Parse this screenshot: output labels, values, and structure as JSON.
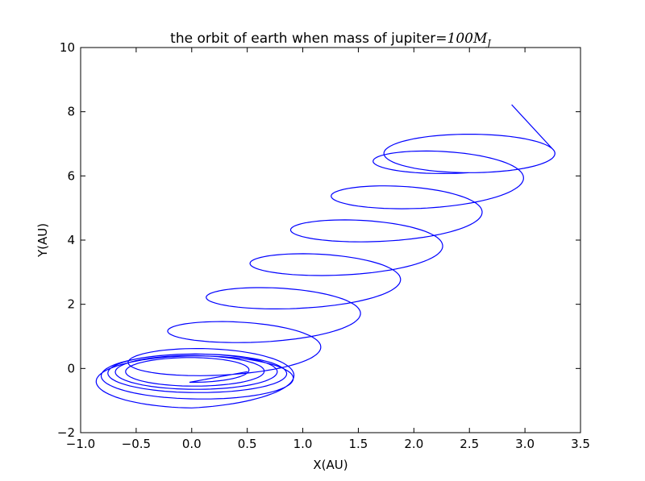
{
  "chart_data": {
    "type": "line",
    "title_prefix": "the orbit of earth when mass of jupiter=",
    "title_math_num": "100",
    "title_math_var": "M",
    "title_math_sub": "J",
    "xlabel": "X(AU)",
    "ylabel": "Y(AU)",
    "xlim": [
      -1.0,
      3.5
    ],
    "ylim": [
      -2,
      10
    ],
    "xticks": [
      -1.0,
      -0.5,
      0.0,
      0.5,
      1.0,
      1.5,
      2.0,
      2.5,
      3.0,
      3.5
    ],
    "xtick_labels": [
      "−1.0",
      "−0.5",
      "0.0",
      "0.5",
      "1.0",
      "1.5",
      "2.0",
      "2.5",
      "3.0",
      "3.5"
    ],
    "yticks": [
      -2,
      0,
      2,
      4,
      6,
      8,
      10
    ],
    "ytick_labels": [
      "−2",
      "0",
      "2",
      "4",
      "6",
      "8",
      "10"
    ],
    "grid": false,
    "line_color": "#0000ff",
    "series": [
      {
        "orbit_start": [
          0.5,
          -0.1
        ],
        "orbit_end": [
          2.88,
          8.22
        ],
        "loops": [
          {
            "cx": -0.02,
            "cy": -0.05,
            "a": 0.5,
            "b": 0.38
          },
          {
            "cx": 0.0,
            "cy": -0.1,
            "a": 0.62,
            "b": 0.45
          },
          {
            "cx": 0.02,
            "cy": -0.1,
            "a": 0.73,
            "b": 0.55
          },
          {
            "cx": 0.03,
            "cy": -0.15,
            "a": 0.8,
            "b": 0.6
          },
          {
            "cx": 0.05,
            "cy": -0.25,
            "a": 0.88,
            "b": 0.7
          },
          {
            "cx": 0.0,
            "cy": -0.45,
            "a": 0.87,
            "b": 0.78
          },
          {
            "cx": 0.3,
            "cy": 0.35,
            "a": 0.77,
            "b": 0.55
          },
          {
            "cx": 0.65,
            "cy": 1.4,
            "a": 0.78,
            "b": 0.57
          },
          {
            "cx": 1.0,
            "cy": 2.45,
            "a": 0.78,
            "b": 0.57
          },
          {
            "cx": 1.4,
            "cy": 3.5,
            "a": 0.77,
            "b": 0.58
          },
          {
            "cx": 1.75,
            "cy": 4.55,
            "a": 0.77,
            "b": 0.58
          },
          {
            "cx": 2.12,
            "cy": 5.6,
            "a": 0.77,
            "b": 0.6
          },
          {
            "cx": 2.5,
            "cy": 6.7,
            "a": 0.77,
            "b": 0.6
          }
        ]
      }
    ]
  }
}
